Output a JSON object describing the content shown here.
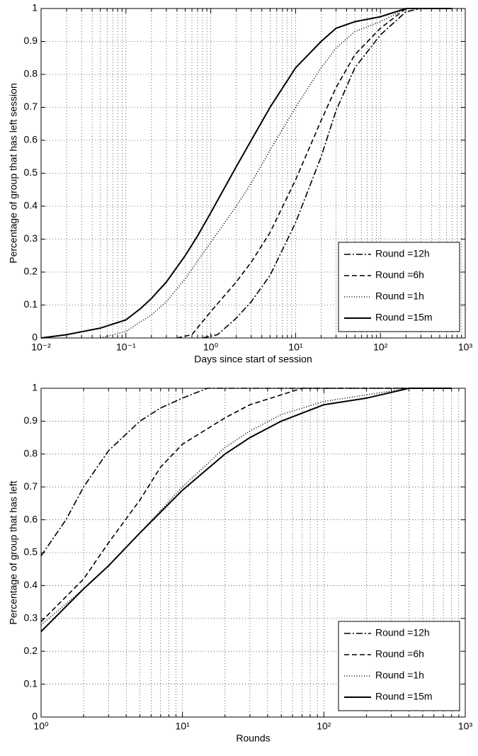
{
  "chart_data": [
    {
      "type": "line",
      "xscale": "log",
      "grid": true,
      "minor_grid": true,
      "legend": "lower right",
      "xlabel": "Days since start of session",
      "ylabel": "Percentage of group that has left session",
      "xlim": [
        0.01,
        1000
      ],
      "ylim": [
        0,
        1
      ],
      "xticks": [
        {
          "value": 0.01,
          "label": "10⁻²"
        },
        {
          "value": 0.1,
          "label": "10⁻¹"
        },
        {
          "value": 1,
          "label": "10⁰"
        },
        {
          "value": 10,
          "label": "10¹"
        },
        {
          "value": 100,
          "label": "10²"
        },
        {
          "value": 1000,
          "label": "10³"
        }
      ],
      "yticks": [
        0,
        0.1,
        0.2,
        0.3,
        0.4,
        0.5,
        0.6,
        0.7,
        0.8,
        0.9,
        1
      ],
      "series": [
        {
          "name": "Round =12h",
          "color": "#000000",
          "style": "dashdot",
          "x": [
            0.8,
            1.2,
            2,
            3,
            5,
            10,
            20,
            30,
            50,
            100,
            200,
            300,
            700
          ],
          "values": [
            0,
            0.01,
            0.06,
            0.11,
            0.19,
            0.35,
            0.55,
            0.69,
            0.82,
            0.92,
            0.99,
            1,
            1
          ]
        },
        {
          "name": "Round =6h",
          "color": "#000000",
          "style": "dashed",
          "x": [
            0.4,
            0.6,
            1,
            2,
            3,
            5,
            10,
            20,
            30,
            50,
            100,
            200,
            700
          ],
          "values": [
            0,
            0.01,
            0.08,
            0.17,
            0.23,
            0.32,
            0.48,
            0.66,
            0.76,
            0.86,
            0.94,
            1,
            1
          ]
        },
        {
          "name": "Round =1h",
          "color": "#000000",
          "style": "dotted",
          "x": [
            0.05,
            0.1,
            0.2,
            0.3,
            0.5,
            1,
            2,
            3,
            5,
            10,
            20,
            30,
            50,
            100,
            200,
            700
          ],
          "values": [
            0,
            0.02,
            0.07,
            0.11,
            0.18,
            0.29,
            0.4,
            0.47,
            0.57,
            0.7,
            0.82,
            0.88,
            0.93,
            0.96,
            1,
            1
          ]
        },
        {
          "name": "Round =15m",
          "color": "#000000",
          "style": "solid",
          "x": [
            0.01,
            0.02,
            0.05,
            0.1,
            0.15,
            0.2,
            0.3,
            0.5,
            0.7,
            1,
            2,
            3,
            5,
            10,
            20,
            30,
            50,
            100,
            200,
            700
          ],
          "values": [
            0,
            0.01,
            0.03,
            0.055,
            0.09,
            0.12,
            0.17,
            0.25,
            0.31,
            0.38,
            0.52,
            0.6,
            0.7,
            0.82,
            0.9,
            0.94,
            0.96,
            0.975,
            1,
            1
          ]
        }
      ]
    },
    {
      "type": "line",
      "xscale": "log",
      "grid": true,
      "minor_grid": true,
      "legend": "lower right",
      "xlabel": "Rounds",
      "ylabel": "Percentage of group that has left",
      "xlim": [
        1,
        1000
      ],
      "ylim": [
        0,
        1
      ],
      "xticks": [
        {
          "value": 1,
          "label": "10⁰"
        },
        {
          "value": 10,
          "label": "10¹"
        },
        {
          "value": 100,
          "label": "10²"
        },
        {
          "value": 1000,
          "label": "10³"
        }
      ],
      "yticks": [
        0,
        0.1,
        0.2,
        0.3,
        0.4,
        0.5,
        0.6,
        0.7,
        0.8,
        0.9,
        1
      ],
      "series": [
        {
          "name": "Round =12h",
          "color": "#000000",
          "style": "dashdot",
          "x": [
            1,
            1.5,
            2,
            3,
            5,
            7,
            10,
            15,
            800
          ],
          "values": [
            0.49,
            0.6,
            0.7,
            0.81,
            0.9,
            0.94,
            0.97,
            1,
            1
          ]
        },
        {
          "name": "Round =6h",
          "color": "#000000",
          "style": "dashed",
          "x": [
            1,
            2,
            3,
            5,
            7,
            10,
            20,
            30,
            50,
            70,
            800
          ],
          "values": [
            0.29,
            0.42,
            0.53,
            0.66,
            0.76,
            0.83,
            0.91,
            0.95,
            0.98,
            1,
            1
          ]
        },
        {
          "name": "Round =1h",
          "color": "#000000",
          "style": "dotted",
          "x": [
            1,
            2,
            3,
            5,
            10,
            20,
            30,
            50,
            100,
            200,
            400,
            800
          ],
          "values": [
            0.28,
            0.39,
            0.46,
            0.56,
            0.7,
            0.82,
            0.87,
            0.92,
            0.96,
            0.98,
            1,
            1
          ]
        },
        {
          "name": "Round =15m",
          "color": "#000000",
          "style": "solid",
          "x": [
            1,
            2,
            3,
            5,
            10,
            20,
            30,
            50,
            100,
            200,
            400,
            800
          ],
          "values": [
            0.26,
            0.39,
            0.46,
            0.56,
            0.69,
            0.8,
            0.85,
            0.9,
            0.95,
            0.97,
            1,
            1
          ]
        }
      ]
    }
  ]
}
